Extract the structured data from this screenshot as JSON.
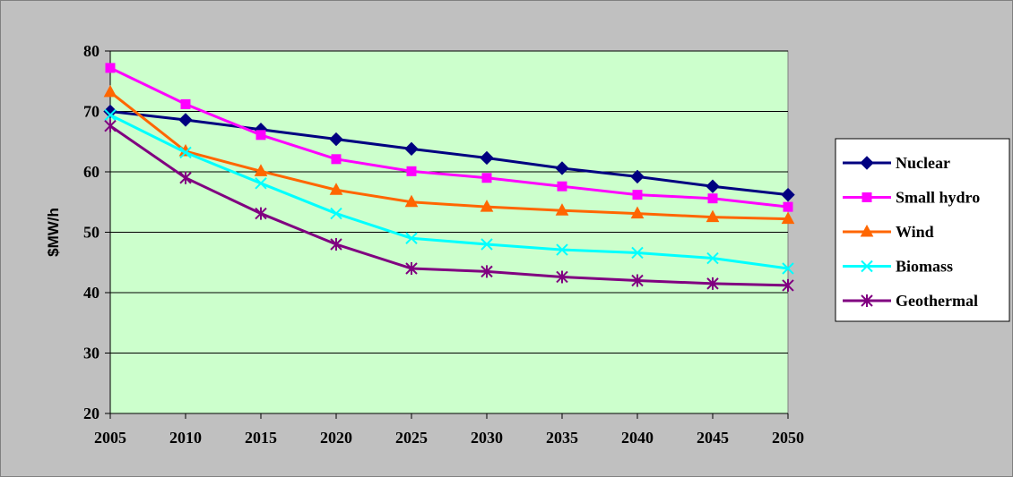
{
  "chart_data": {
    "type": "line",
    "title": "",
    "xlabel": "",
    "ylabel": "$MW/h",
    "x": [
      "2005",
      "2010",
      "2015",
      "2020",
      "2025",
      "2030",
      "2035",
      "2040",
      "2045",
      "2050"
    ],
    "yticks": [
      "20",
      "30",
      "40",
      "50",
      "60",
      "70",
      "80"
    ],
    "ylim": [
      20,
      80
    ],
    "grid": "horizontal",
    "legend_position": "right",
    "plot_background": "#ccffcc",
    "chart_background": "#c0c0c0",
    "series": [
      {
        "name": "Nuclear",
        "color": "#000080",
        "marker": "diamond",
        "values": [
          70,
          68.6,
          67,
          65.4,
          63.8,
          62.3,
          60.6,
          59.2,
          57.6,
          56.2
        ]
      },
      {
        "name": "Small hydro",
        "color": "#ff00ff",
        "marker": "square",
        "values": [
          77.2,
          71.2,
          66.1,
          62.1,
          60.1,
          59,
          57.6,
          56.2,
          55.6,
          54.2
        ]
      },
      {
        "name": "Wind",
        "color": "#ff6600",
        "marker": "triangle",
        "values": [
          73.2,
          63.4,
          60.1,
          57,
          55,
          54.2,
          53.6,
          53.1,
          52.5,
          52.2
        ]
      },
      {
        "name": "Biomass",
        "color": "#00ffff",
        "marker": "x",
        "values": [
          69.4,
          63.2,
          58.1,
          53.1,
          49,
          48,
          47.1,
          46.6,
          45.7,
          44
        ]
      },
      {
        "name": "Geothermal",
        "color": "#800080",
        "marker": "asterisk",
        "values": [
          67.6,
          59,
          53.1,
          48,
          44,
          43.5,
          42.6,
          42,
          41.5,
          41.2
        ]
      }
    ]
  }
}
